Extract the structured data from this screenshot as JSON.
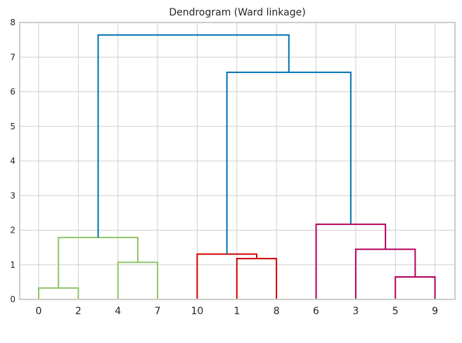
{
  "chart_data": {
    "type": "dendrogram",
    "title": "Dendrogram (Ward linkage)",
    "xlabel": "",
    "ylabel": "",
    "ylim": [
      0,
      8
    ],
    "y_ticks": [
      0,
      1,
      2,
      3,
      4,
      5,
      6,
      7,
      8
    ],
    "grid": true,
    "leaf_order": [
      "0",
      "2",
      "4",
      "7",
      "10",
      "1",
      "8",
      "6",
      "3",
      "5",
      "9"
    ],
    "colors": {
      "green": "#8fc46a",
      "red": "#d10000",
      "magenta": "#b5005b",
      "blue": "#0072b2",
      "grid": "#cfcfcf",
      "spine": "#cccccc",
      "text": "#262626"
    },
    "links": [
      {
        "xl": 0,
        "xr": 1,
        "yl": 0,
        "yr": 0,
        "h": 0.33,
        "color": "green"
      },
      {
        "xl": 2,
        "xr": 3,
        "yl": 0,
        "yr": 0,
        "h": 1.07,
        "color": "green"
      },
      {
        "xl": 0.5,
        "xr": 2.5,
        "yl": 0.33,
        "yr": 1.07,
        "h": 1.79,
        "color": "green"
      },
      {
        "xl": 5,
        "xr": 6,
        "yl": 0,
        "yr": 0,
        "h": 1.18,
        "color": "red"
      },
      {
        "xl": 4,
        "xr": 5.5,
        "yl": 0,
        "yr": 1.18,
        "h": 1.31,
        "color": "red"
      },
      {
        "xl": 9,
        "xr": 10,
        "yl": 0,
        "yr": 0,
        "h": 0.65,
        "color": "magenta"
      },
      {
        "xl": 8,
        "xr": 9.5,
        "yl": 0,
        "yr": 0.65,
        "h": 1.45,
        "color": "magenta"
      },
      {
        "xl": 7,
        "xr": 8.75,
        "yl": 0,
        "yr": 1.45,
        "h": 2.17,
        "color": "magenta"
      },
      {
        "xl": 4.75,
        "xr": 7.875,
        "yl": 1.31,
        "yr": 2.17,
        "h": 6.56,
        "color": "blue"
      },
      {
        "xl": 1.5,
        "xr": 6.3125,
        "yl": 1.79,
        "yr": 6.56,
        "h": 7.64,
        "color": "blue"
      }
    ]
  }
}
